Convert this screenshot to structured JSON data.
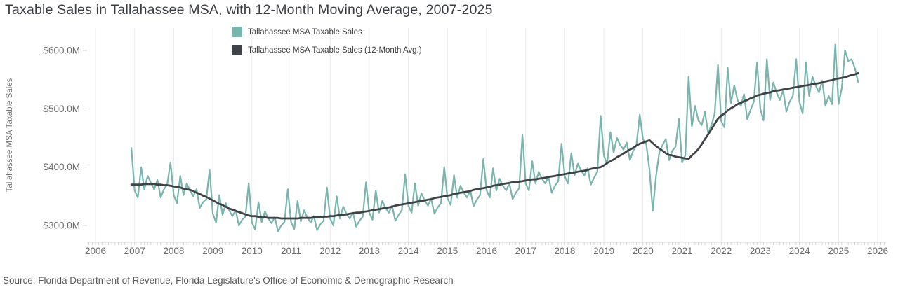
{
  "page": {
    "title": "Taxable Sales in Tallahassee MSA, with 12-Month Moving Average, 2007-2025",
    "source": "Source: Florida Department of Revenue, Florida Legislature's Office of Economic & Demographic Research"
  },
  "legend": [
    {
      "label": "Tallahassee MSA Taxable Sales",
      "color": "#79b5ac"
    },
    {
      "label": "Tallahassee MSA Taxable Sales (12-Month Avg.)",
      "color": "#3f4347"
    }
  ],
  "axes": {
    "y_title": "Tallahassee MSA Taxable Sales",
    "y_ticks": [
      {
        "label": "$600.0M",
        "value": 600
      },
      {
        "label": "$500.0M",
        "value": 500
      },
      {
        "label": "$400.0M",
        "value": 400
      },
      {
        "label": "$300.0M",
        "value": 300
      }
    ],
    "x_ticks": [
      "2006",
      "2007",
      "2008",
      "2009",
      "2010",
      "2011",
      "2012",
      "2013",
      "2014",
      "2015",
      "2016",
      "2017",
      "2018",
      "2019",
      "2020",
      "2021",
      "2022",
      "2023",
      "2024",
      "2025",
      "2026"
    ]
  },
  "chart_data": {
    "type": "line",
    "title": "Taxable Sales in Tallahassee MSA, with 12-Month Moving Average, 2007-2025",
    "xlabel": "",
    "ylabel": "Tallahassee MSA Taxable Sales",
    "y_unit": "USD millions",
    "x_range": [
      2006,
      2026
    ],
    "y_range": [
      270,
      640
    ],
    "grid": "vertical-yearly",
    "legend_position": "top",
    "start_month": "2006-12",
    "frequency": "monthly",
    "series": [
      {
        "id": "series-sales",
        "name": "Tallahassee MSA Taxable Sales",
        "color": "#79b5ac",
        "width": 2.2,
        "values": [
          433,
          360,
          348,
          400,
          362,
          385,
          373,
          362,
          378,
          348,
          362,
          370,
          408,
          352,
          338,
          385,
          352,
          372,
          360,
          350,
          362,
          330,
          340,
          345,
          395,
          320,
          305,
          352,
          318,
          338,
          326,
          316,
          326,
          300,
          310,
          315,
          372,
          305,
          293,
          340,
          306,
          324,
          312,
          304,
          314,
          290,
          300,
          306,
          362,
          306,
          294,
          342,
          307,
          326,
          314,
          305,
          316,
          292,
          302,
          308,
          365,
          312,
          300,
          350,
          312,
          332,
          320,
          312,
          322,
          298,
          308,
          315,
          374,
          322,
          310,
          360,
          322,
          342,
          330,
          322,
          334,
          308,
          318,
          326,
          388,
          334,
          322,
          372,
          334,
          355,
          343,
          334,
          346,
          320,
          331,
          338,
          400,
          347,
          335,
          386,
          348,
          368,
          356,
          348,
          360,
          333,
          344,
          352,
          414,
          360,
          348,
          398,
          360,
          380,
          368,
          360,
          372,
          345,
          356,
          364,
          455,
          372,
          360,
          410,
          372,
          392,
          380,
          372,
          384,
          356,
          368,
          376,
          440,
          384,
          372,
          424,
          386,
          406,
          394,
          386,
          398,
          370,
          382,
          392,
          488,
          420,
          405,
          460,
          425,
          450,
          438,
          430,
          442,
          412,
          428,
          438,
          490,
          448,
          440,
          395,
          325,
          385,
          425,
          438,
          448,
          412,
          428,
          435,
          483,
          408,
          420,
          555,
          470,
          505,
          480,
          472,
          495,
          458,
          472,
          492,
          575,
          479,
          468,
          570,
          510,
          540,
          515,
          505,
          525,
          482,
          498,
          512,
          580,
          500,
          480,
          585,
          515,
          545,
          528,
          515,
          532,
          495,
          512,
          522,
          585,
          512,
          492,
          580,
          522,
          555,
          540,
          528,
          548,
          505,
          522,
          508,
          610,
          508,
          535,
          600,
          582,
          585,
          570,
          546
        ]
      },
      {
        "id": "series-moving-avg",
        "name": "Tallahassee MSA Taxable Sales (12-Month Avg.)",
        "color": "#3f4347",
        "width": 2.8,
        "values": [
          370,
          370,
          370,
          370,
          371,
          371,
          371,
          371,
          370,
          370,
          369,
          369,
          368,
          367,
          366,
          365,
          363,
          362,
          361,
          359,
          356,
          354,
          351,
          349,
          346,
          343,
          340,
          337,
          335,
          332,
          329,
          327,
          325,
          323,
          321,
          319,
          317,
          316,
          316,
          315,
          314,
          314,
          313,
          313,
          313,
          313,
          312,
          312,
          312,
          312,
          312,
          312,
          313,
          313,
          313,
          313,
          314,
          314,
          314,
          315,
          315,
          316,
          316,
          317,
          318,
          318,
          319,
          320,
          321,
          322,
          322,
          323,
          324,
          325,
          326,
          327,
          328,
          329,
          330,
          331,
          332,
          334,
          335,
          336,
          337,
          338,
          339,
          340,
          341,
          342,
          343,
          344,
          345,
          347,
          348,
          349,
          350,
          351,
          352,
          354,
          355,
          356,
          357,
          358,
          359,
          361,
          362,
          363,
          364,
          365,
          366,
          368,
          369,
          370,
          371,
          372,
          373,
          374,
          374,
          375,
          376,
          377,
          378,
          379,
          379,
          380,
          381,
          382,
          383,
          384,
          385,
          386,
          387,
          388,
          389,
          390,
          391,
          392,
          393,
          394,
          395,
          397,
          398,
          399,
          400,
          403,
          407,
          410,
          413,
          417,
          420,
          423,
          427,
          430,
          433,
          437,
          440,
          442,
          444,
          446,
          441,
          436,
          432,
          428,
          424,
          421,
          420,
          418,
          417,
          416,
          415,
          414,
          420,
          425,
          431,
          439,
          448,
          456,
          465,
          474,
          483,
          488,
          492,
          497,
          501,
          504,
          508,
          510,
          513,
          515,
          518,
          520,
          523,
          524,
          526,
          527,
          528,
          530,
          531,
          532,
          533,
          534,
          535,
          536,
          537,
          538,
          539,
          540,
          541,
          542,
          543,
          544,
          545,
          547,
          548,
          549,
          551,
          552,
          553,
          554,
          556,
          558,
          559,
          561
        ]
      }
    ]
  }
}
